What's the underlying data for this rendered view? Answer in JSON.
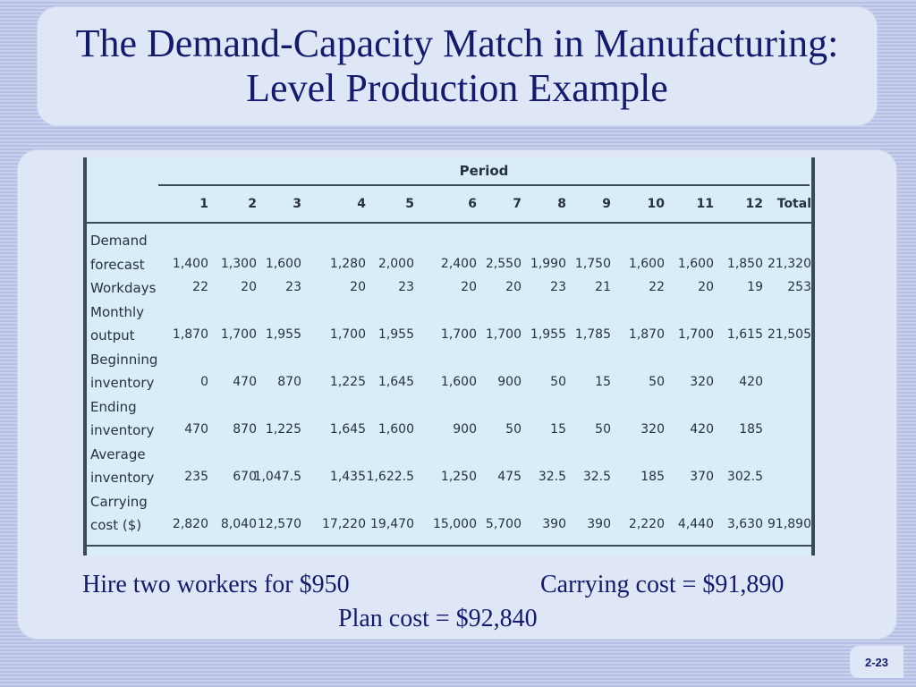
{
  "title": "The Demand-Capacity Match in Manufacturing: Level Production Example",
  "table": {
    "period_header": "Period",
    "columns": [
      "1",
      "2",
      "3",
      "4",
      "5",
      "6",
      "7",
      "8",
      "9",
      "10",
      "11",
      "12",
      "Total"
    ],
    "rows": [
      {
        "label_lines": [
          "Demand",
          "forecast"
        ],
        "values": [
          "1,400",
          "1,300",
          "1,600",
          "1,280",
          "2,000",
          "2,400",
          "2,550",
          "1,990",
          "1,750",
          "1,600",
          "1,600",
          "1,850",
          "21,320"
        ]
      },
      {
        "label_lines": [
          "Workdays"
        ],
        "values": [
          "22",
          "20",
          "23",
          "20",
          "23",
          "20",
          "20",
          "23",
          "21",
          "22",
          "20",
          "19",
          "253"
        ]
      },
      {
        "label_lines": [
          "Monthly",
          "output"
        ],
        "values": [
          "1,870",
          "1,700",
          "1,955",
          "1,700",
          "1,955",
          "1,700",
          "1,700",
          "1,955",
          "1,785",
          "1,870",
          "1,700",
          "1,615",
          "21,505"
        ]
      },
      {
        "label_lines": [
          "Beginning",
          "inventory"
        ],
        "values": [
          "0",
          "470",
          "870",
          "1,225",
          "1,645",
          "1,600",
          "900",
          "50",
          "15",
          "50",
          "320",
          "420",
          ""
        ]
      },
      {
        "label_lines": [
          "Ending",
          "inventory"
        ],
        "values": [
          "470",
          "870",
          "1,225",
          "1,645",
          "1,600",
          "900",
          "50",
          "15",
          "50",
          "320",
          "420",
          "185",
          ""
        ]
      },
      {
        "label_lines": [
          "Average",
          "inventory"
        ],
        "values": [
          "235",
          "670",
          "1,047.5",
          "1,435",
          "1,622.5",
          "1,250",
          "475",
          "32.5",
          "32.5",
          "185",
          "370",
          "302.5",
          ""
        ]
      },
      {
        "label_lines": [
          "Carrying",
          "cost ($)"
        ],
        "values": [
          "2,820",
          "8,040",
          "12,570",
          "17,220",
          "19,470",
          "15,000",
          "5,700",
          "390",
          "390",
          "2,220",
          "4,440",
          "3,630",
          "91,890"
        ]
      }
    ]
  },
  "notes": {
    "hire": "Hire two workers for $950",
    "carrying": "Carrying cost = $91,890",
    "plan": "Plan cost = $92,840"
  },
  "slide_number": "2-23"
}
